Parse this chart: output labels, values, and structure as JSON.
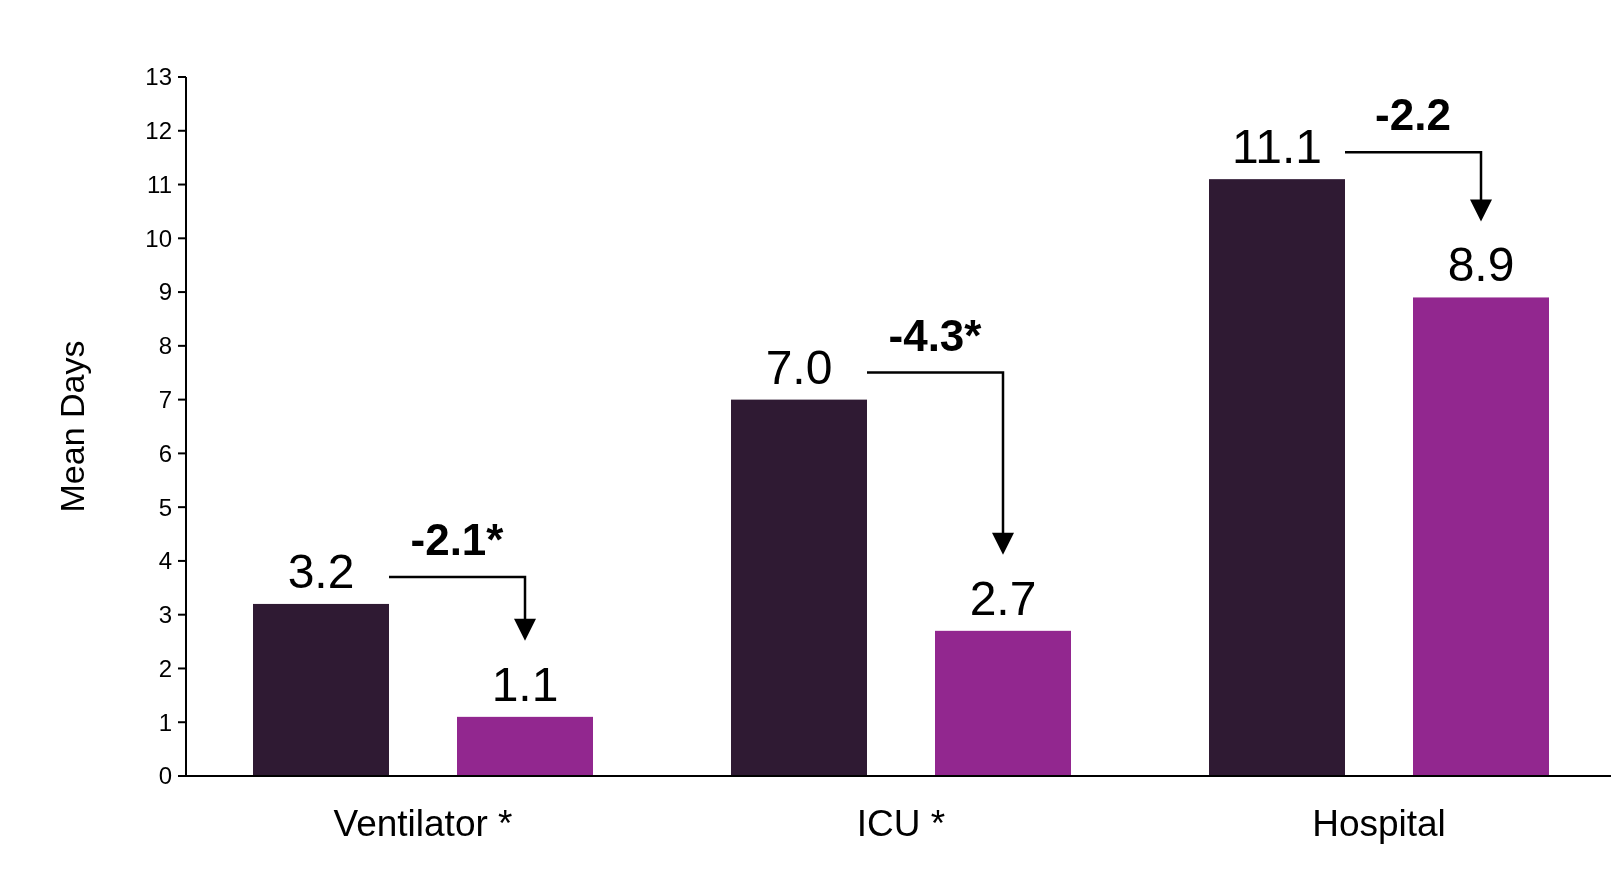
{
  "chart_data": {
    "type": "bar",
    "ylabel": "Mean Days",
    "categories": [
      "Ventilator *",
      "ICU *",
      "Hospital"
    ],
    "series": [
      {
        "color": "#2f1a33",
        "values": [
          3.2,
          7.0,
          11.1
        ],
        "value_labels": [
          "3.2",
          "7.0",
          "11.1"
        ]
      },
      {
        "color": "#92278f",
        "values": [
          1.1,
          2.7,
          8.9
        ],
        "value_labels": [
          "1.1",
          "2.7",
          "8.9"
        ]
      }
    ],
    "ylim": [
      0,
      13
    ],
    "yticks": [
      0,
      1,
      2,
      3,
      4,
      5,
      6,
      7,
      8,
      9,
      10,
      11,
      12,
      13
    ],
    "grid": false,
    "annotations": [
      "-2.1*",
      "-4.3*",
      "-2.2"
    ]
  }
}
